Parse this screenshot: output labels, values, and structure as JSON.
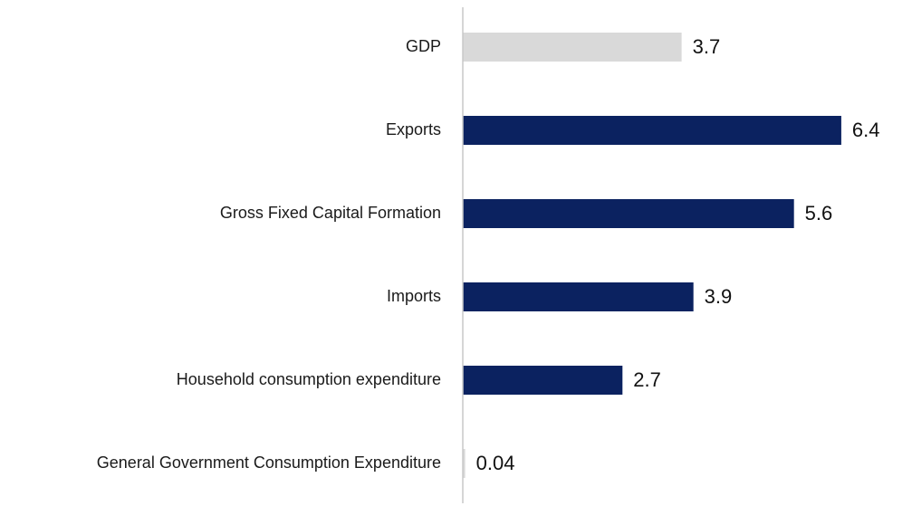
{
  "chart_data": {
    "type": "bar",
    "orientation": "horizontal",
    "categories": [
      "GDP",
      "Exports",
      "Gross Fixed Capital Formation",
      "Imports",
      "Household consumption expenditure",
      "General Government Consumption Expenditure"
    ],
    "values": [
      3.7,
      6.4,
      5.6,
      3.9,
      2.7,
      0.04
    ],
    "data_labels": [
      "3.7",
      "6.4",
      "5.6",
      "3.9",
      "2.7",
      "0.04"
    ],
    "bar_colors": [
      "#d9d9d9",
      "#0b2260",
      "#0b2260",
      "#0b2260",
      "#0b2260",
      "#d9d9d9"
    ],
    "axis_color": "#c8c8c8",
    "title": "",
    "xlabel": "",
    "ylabel": "",
    "xlim": [
      0,
      6.4
    ],
    "grid": false,
    "legend": "none"
  }
}
